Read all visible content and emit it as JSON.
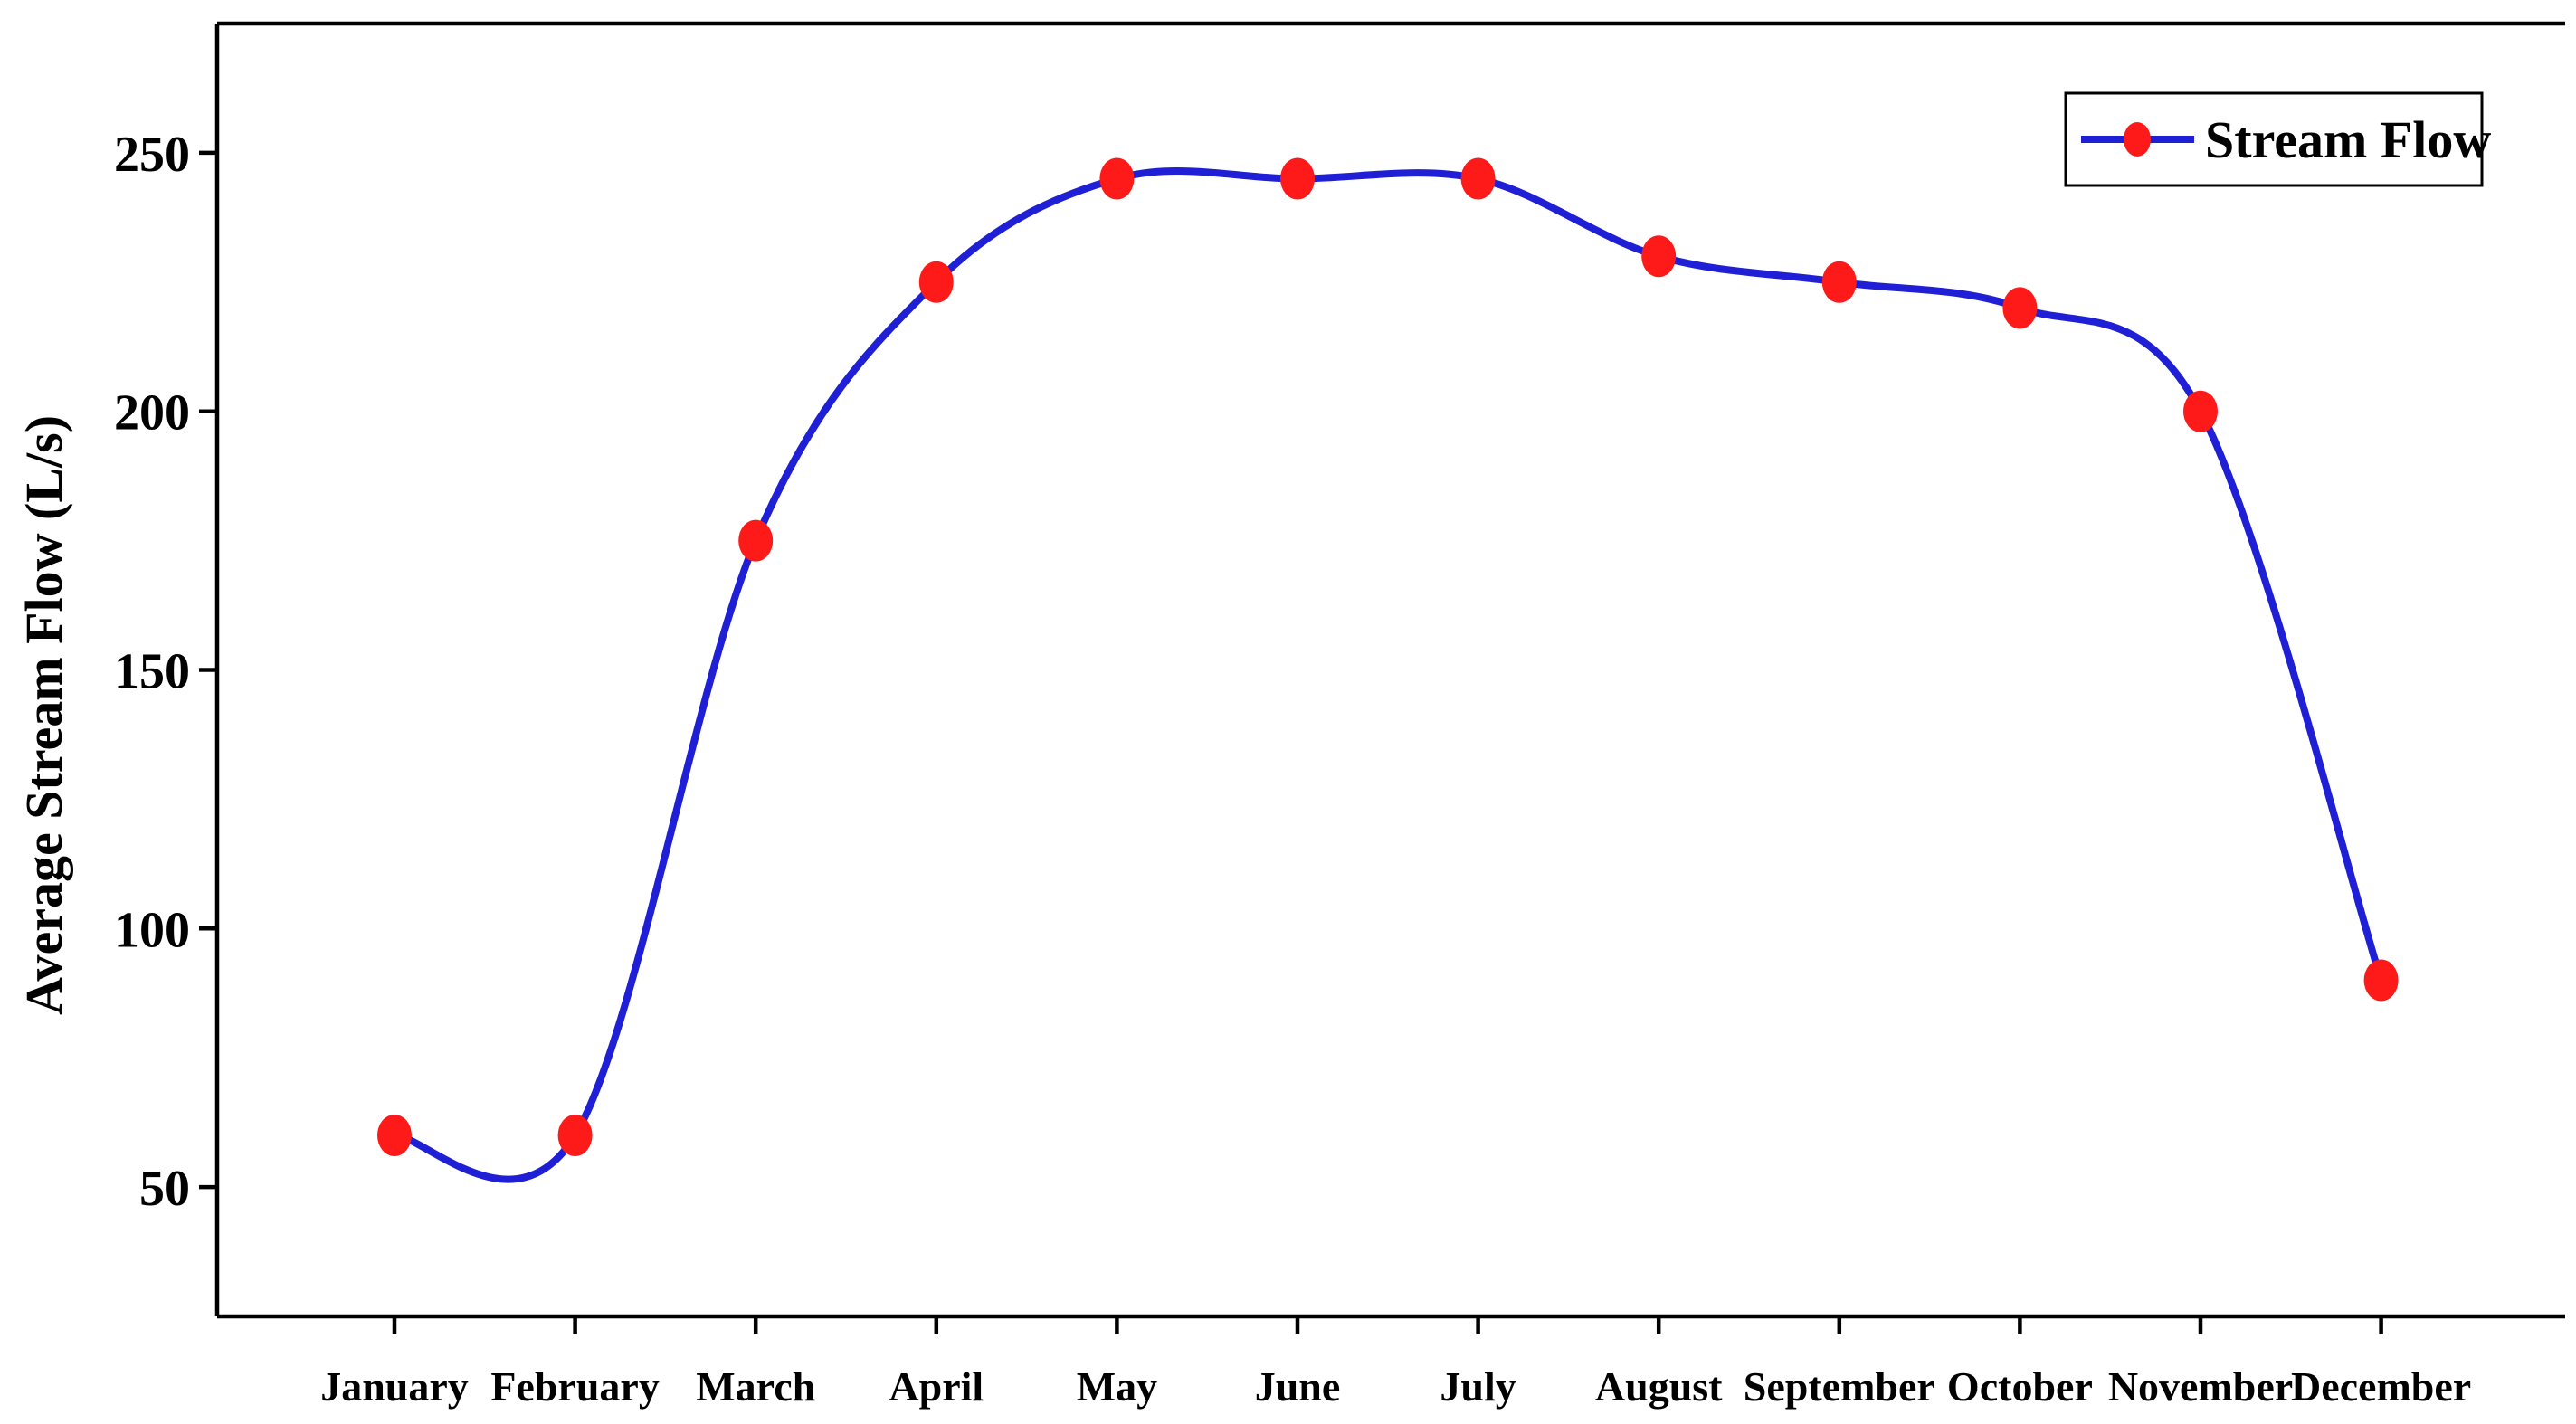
{
  "chart_data": {
    "type": "line",
    "title": "",
    "xlabel": "",
    "ylabel": "Average Stream Flow (L/s)",
    "categories": [
      "January",
      "February",
      "March",
      "April",
      "May",
      "June",
      "July",
      "August",
      "September",
      "October",
      "November",
      "December"
    ],
    "series": [
      {
        "name": "Stream Flow",
        "values": [
          60,
          60,
          175,
          225,
          245,
          245,
          245,
          230,
          225,
          220,
          200,
          90
        ],
        "color": "#1f1fd6",
        "marker_color": "#ff1a1a"
      }
    ],
    "yticks": [
      50,
      100,
      150,
      200,
      250
    ],
    "ylim": [
      25,
      275
    ],
    "grid": false,
    "legend_position": "top-right"
  }
}
